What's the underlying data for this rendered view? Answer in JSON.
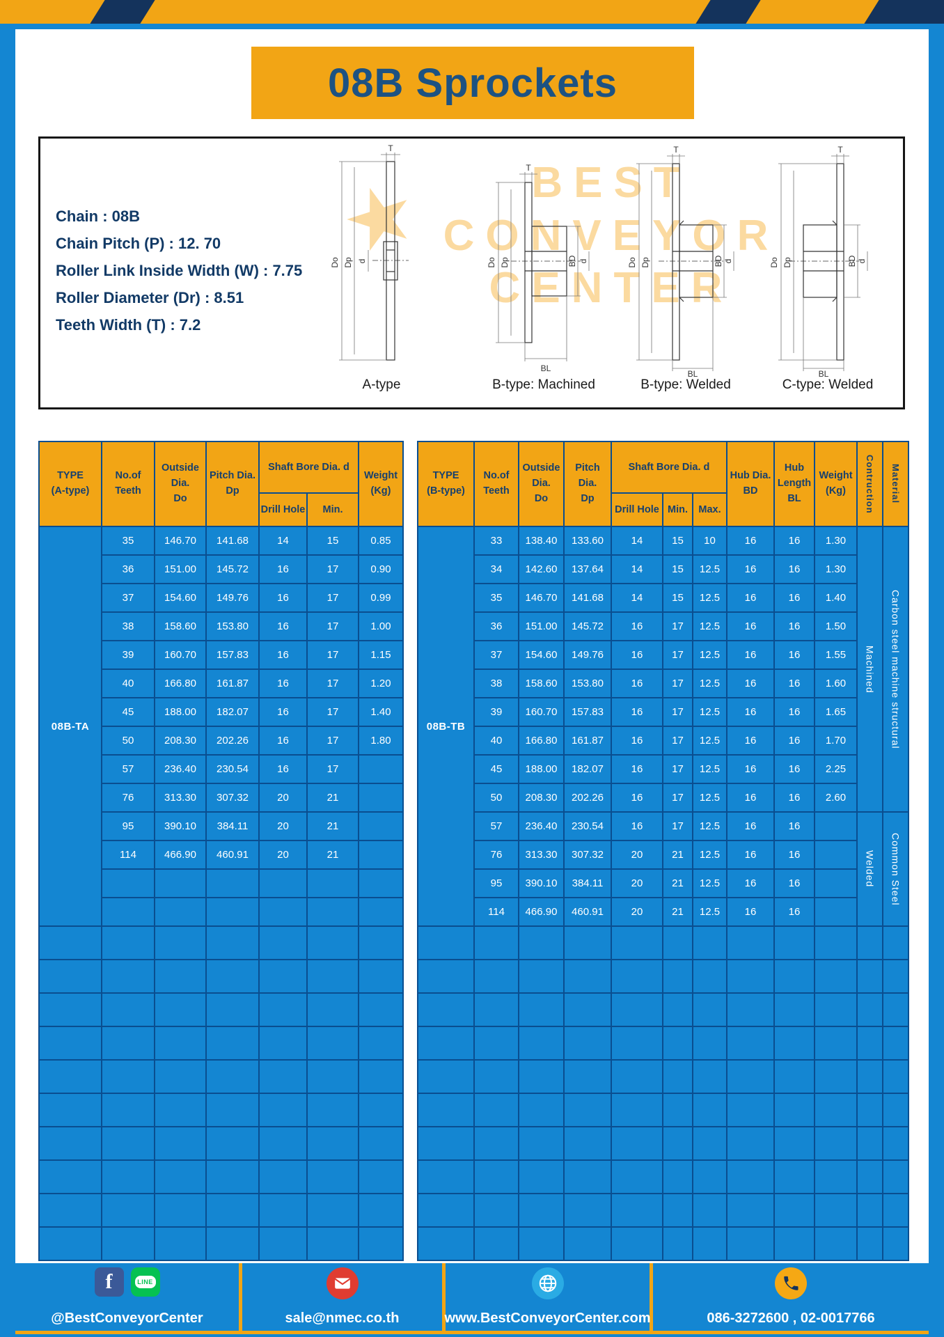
{
  "title": "08B Sprockets",
  "specs": [
    "Chain : 08B",
    "Chain Pitch (P) : 12. 70",
    "Roller Link Inside Width (W) : 7.75",
    "Roller Diameter (Dr) : 8.51",
    "Teeth Width (T) : 7.2"
  ],
  "diagram": {
    "captions": [
      "A-type",
      "B-type: Machined",
      "B-type: Welded",
      "C-type: Welded"
    ],
    "dims": {
      "T": "T",
      "Do": "Do",
      "Dp": "Dp",
      "d": "d",
      "BD": "BD",
      "BL": "BL"
    },
    "watermark": {
      "star": "★",
      "line1": "BEST",
      "line2": "CONVEYOR",
      "line3": "CENTER"
    }
  },
  "table_a": {
    "type_label": "08B-TA",
    "headers": {
      "type": [
        "TYPE",
        "(A-type)"
      ],
      "teeth": [
        "No.of",
        "Teeth"
      ],
      "outside": [
        "Outside",
        "Dia.",
        "Do"
      ],
      "pitch": [
        "Pitch Dia.",
        "Dp"
      ],
      "shaft_group": "Shaft Bore Dia. d",
      "drill": "Drill Hole",
      "min": "Min.",
      "weight": [
        "Weight",
        "(Kg)"
      ]
    },
    "rows": [
      [
        "35",
        "146.70",
        "141.68",
        "14",
        "15",
        "0.85"
      ],
      [
        "36",
        "151.00",
        "145.72",
        "16",
        "17",
        "0.90"
      ],
      [
        "37",
        "154.60",
        "149.76",
        "16",
        "17",
        "0.99"
      ],
      [
        "38",
        "158.60",
        "153.80",
        "16",
        "17",
        "1.00"
      ],
      [
        "39",
        "160.70",
        "157.83",
        "16",
        "17",
        "1.15"
      ],
      [
        "40",
        "166.80",
        "161.87",
        "16",
        "17",
        "1.20"
      ],
      [
        "45",
        "188.00",
        "182.07",
        "16",
        "17",
        "1.40"
      ],
      [
        "50",
        "208.30",
        "202.26",
        "16",
        "17",
        "1.80"
      ],
      [
        "57",
        "236.40",
        "230.54",
        "16",
        "17",
        ""
      ],
      [
        "76",
        "313.30",
        "307.32",
        "20",
        "21",
        ""
      ],
      [
        "95",
        "390.10",
        "384.11",
        "20",
        "21",
        ""
      ],
      [
        "114",
        "466.90",
        "460.91",
        "20",
        "21",
        ""
      ]
    ],
    "padding_rows": 2,
    "empty_rows": 10
  },
  "table_b": {
    "type_label": "08B-TB",
    "headers": {
      "type": [
        "TYPE",
        "(B-type)"
      ],
      "teeth": [
        "No.of",
        "Teeth"
      ],
      "outside": [
        "Outside",
        "Dia.",
        "Do"
      ],
      "pitch": [
        "Pitch Dia.",
        "Dp"
      ],
      "shaft_group": "Shaft Bore Dia. d",
      "drill": "Drill Hole",
      "min": "Min.",
      "max": "Max.",
      "hub_dia": [
        "Hub Dia.",
        "BD"
      ],
      "hub_len": [
        "Hub",
        "Length",
        "BL"
      ],
      "weight": [
        "Weight",
        "(Kg)"
      ],
      "construction": "Contruction",
      "material": "Material"
    },
    "rows": [
      [
        "33",
        "138.40",
        "133.60",
        "14",
        "15",
        "10",
        "16",
        "16",
        "1.30"
      ],
      [
        "34",
        "142.60",
        "137.64",
        "14",
        "15",
        "12.5",
        "16",
        "16",
        "1.30"
      ],
      [
        "35",
        "146.70",
        "141.68",
        "14",
        "15",
        "12.5",
        "16",
        "16",
        "1.40"
      ],
      [
        "36",
        "151.00",
        "145.72",
        "16",
        "17",
        "12.5",
        "16",
        "16",
        "1.50"
      ],
      [
        "37",
        "154.60",
        "149.76",
        "16",
        "17",
        "12.5",
        "16",
        "16",
        "1.55"
      ],
      [
        "38",
        "158.60",
        "153.80",
        "16",
        "17",
        "12.5",
        "16",
        "16",
        "1.60"
      ],
      [
        "39",
        "160.70",
        "157.83",
        "16",
        "17",
        "12.5",
        "16",
        "16",
        "1.65"
      ],
      [
        "40",
        "166.80",
        "161.87",
        "16",
        "17",
        "12.5",
        "16",
        "16",
        "1.70"
      ],
      [
        "45",
        "188.00",
        "182.07",
        "16",
        "17",
        "12.5",
        "16",
        "16",
        "2.25"
      ],
      [
        "50",
        "208.30",
        "202.26",
        "16",
        "17",
        "12.5",
        "16",
        "16",
        "2.60"
      ],
      [
        "57",
        "236.40",
        "230.54",
        "16",
        "17",
        "12.5",
        "16",
        "16",
        ""
      ],
      [
        "76",
        "313.30",
        "307.32",
        "20",
        "21",
        "12.5",
        "16",
        "16",
        ""
      ],
      [
        "95",
        "390.10",
        "384.11",
        "20",
        "21",
        "12.5",
        "16",
        "16",
        ""
      ],
      [
        "114",
        "466.90",
        "460.91",
        "20",
        "21",
        "12.5",
        "16",
        "16",
        ""
      ]
    ],
    "construction_groups": [
      {
        "label": "Machined",
        "rows": 10
      },
      {
        "label": "Welded",
        "rows": 4
      }
    ],
    "material_groups": [
      {
        "label": "Carbon steel  machine structural",
        "rows": 10
      },
      {
        "label": "Common  Steel",
        "rows": 4
      }
    ],
    "empty_rows": 10
  },
  "footer": {
    "icons": {
      "facebook": "f",
      "line": "LINE"
    },
    "sections": [
      {
        "text": "@BestConveyorCenter"
      },
      {
        "text": "sale@nmec.co.th"
      },
      {
        "text": "www.BestConveyorCenter.com"
      },
      {
        "text": "086-3272600 , 02-0017766"
      }
    ]
  },
  "colors": {
    "background_blue": "#1486d2",
    "accent_yellow": "#F2A515",
    "navy": "#17406e",
    "grid_blue": "#0a4e90",
    "facebook_blue": "#3b5998",
    "line_green": "#06c152",
    "mail_red": "#e03c31",
    "globe_blue": "#2aabe4",
    "phone_yellow": "#f5a814"
  }
}
